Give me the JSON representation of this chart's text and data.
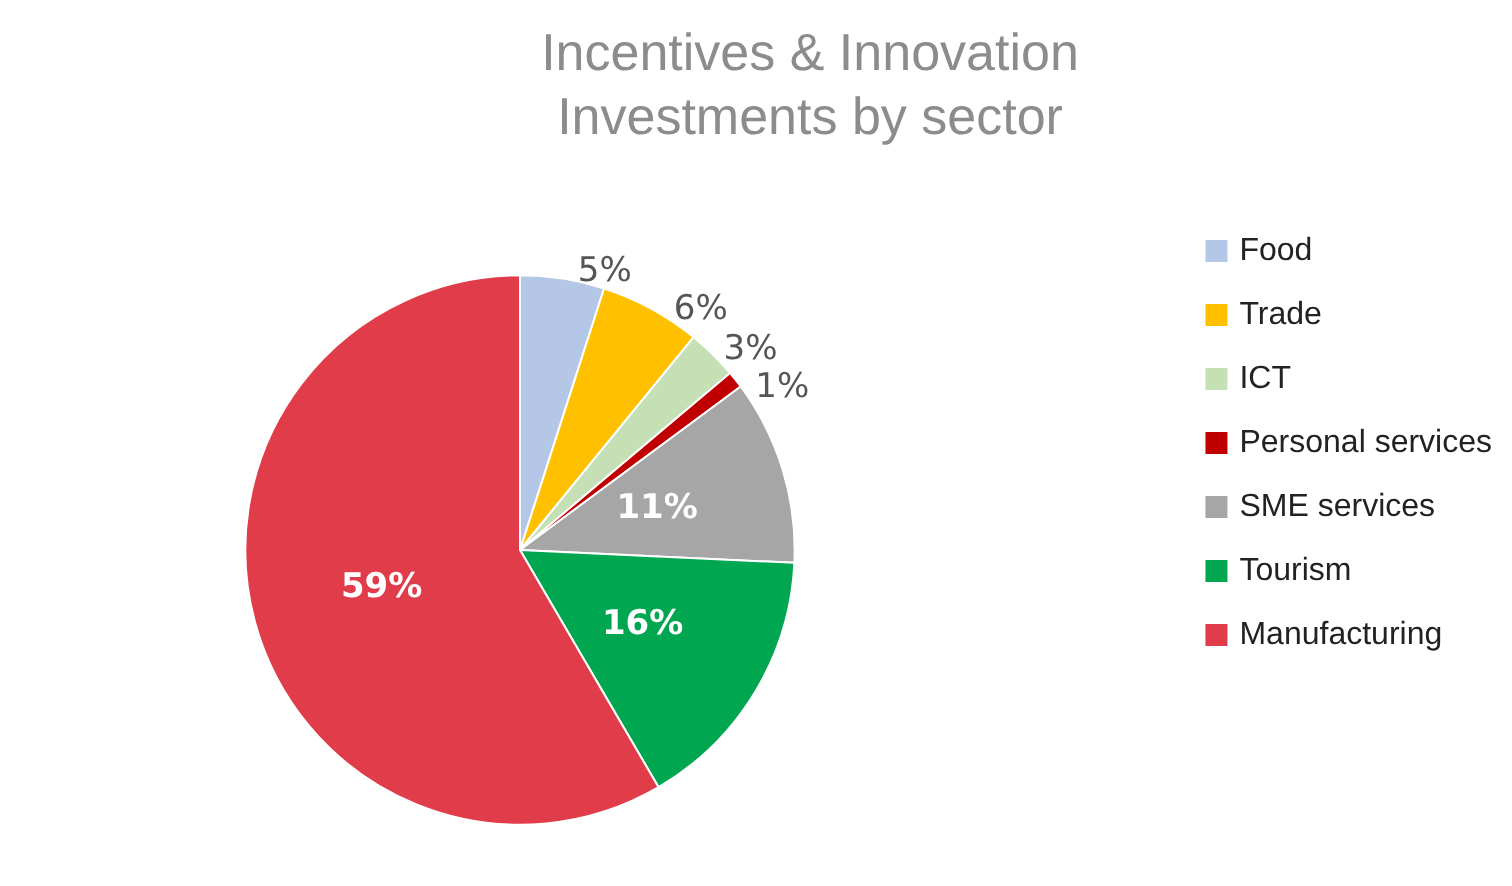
{
  "chart_data": {
    "type": "pie",
    "title": "Incentives & Innovation\nInvestments by sector",
    "categories": [
      "Food",
      "Trade",
      "ICT",
      "Personal services",
      "SME services",
      "Tourism",
      "Manufacturing"
    ],
    "values": [
      5,
      6,
      3,
      1,
      11,
      16,
      59
    ],
    "colors": [
      "#b4c7e7",
      "#ffc000",
      "#c5e0b4",
      "#c00000",
      "#a6a6a6",
      "#00a650",
      "#e03c4a"
    ],
    "value_labels": [
      "5%",
      "6%",
      "3%",
      "1%",
      "11%",
      "16%",
      "59%"
    ],
    "legend": "right"
  }
}
